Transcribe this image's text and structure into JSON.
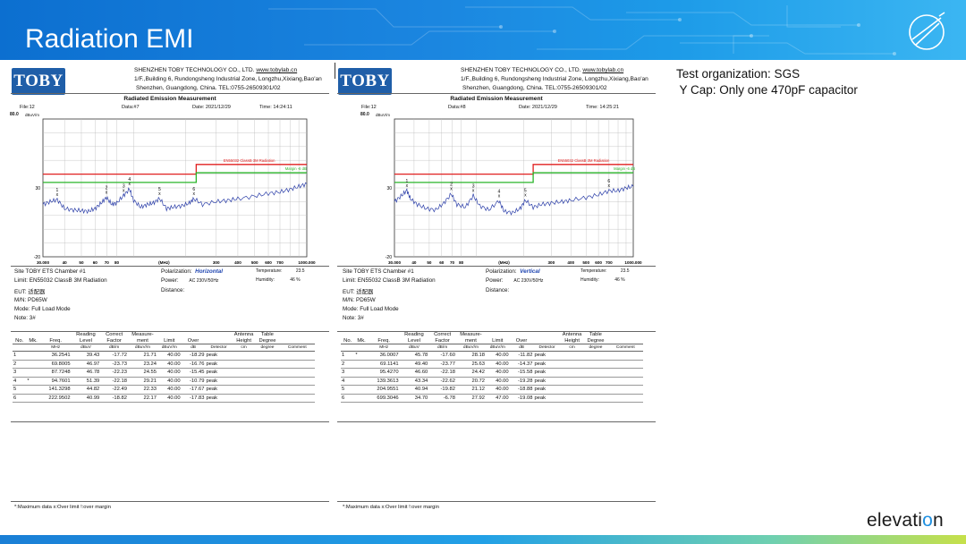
{
  "slide": {
    "title": "Radiation EMI",
    "brand_prefix": "elevati",
    "brand_o": "o",
    "brand_suffix": "n",
    "notes": [
      "Test organization: SGS",
      " Y Cap: Only one 470pF capacitor"
    ]
  },
  "colors": {
    "limit": "#e02020",
    "margin": "#2ab52a",
    "trace": "#2b3ea8",
    "header": "#1b86e0"
  },
  "reports": [
    {
      "company_name": "SHENZHEN TOBY TECHNOLOGY CO., LTD.",
      "website": "www.tobylab.cn",
      "address1": "1/F.,Building 6, Rundongsheng Industrial Zone, Longzhu,Xixiang,Bao'an",
      "address2": "Shenzhen, Guangdong, China.  TEL:0755-26509301/02",
      "logo": "TOBY",
      "heading": "Radiated Emission Measurement",
      "file": "File:12",
      "data": "Data:#7",
      "date": "Date: 2021/12/29",
      "time": "Time: 14:24:11",
      "y_top": "80.0",
      "y_unit": "dBuV/m",
      "site": "Site  TOBY ETS Chamber #1",
      "limit": "Limit: EN55032 ClassB 3M Radiation",
      "eut": "EUT:  适配器",
      "mn": "M/N:  PD65W",
      "mode": "Mode:  Full Load Mode",
      "note": "Note:  3#",
      "polarization_label": "Polarization:",
      "polarization": "Horizontal",
      "power": "Power:",
      "power_value": "AC 230V/50Hz",
      "distance": "Distance:",
      "temperature": "Temperature:",
      "temperature_value": "23.5",
      "humidity": "Humidity:",
      "humidity_value": "46 %",
      "footer": "*:Maximum data     x:Over limit     !:over margin",
      "chart_data": {
        "type": "line",
        "xscale": "log",
        "xlim": [
          30,
          1000
        ],
        "ylim": [
          -20,
          80
        ],
        "xticks": [
          "30.000",
          "40",
          "50",
          "60",
          "70",
          "80",
          "(MHz)",
          "300",
          "400",
          "500",
          "600",
          "700",
          "1000.000"
        ],
        "ytick_labels": [
          "80.0",
          "30",
          "-20"
        ],
        "limit_label": "EN55032 ClassB 3M Radiation",
        "margin_label": "Margin -6 dB",
        "limit_line": [
          {
            "x": 30,
            "y": 40
          },
          {
            "x": 230,
            "y": 40
          },
          {
            "x": 230,
            "y": 47
          },
          {
            "x": 1000,
            "y": 47
          }
        ],
        "margin_line": [
          {
            "x": 30,
            "y": 34
          },
          {
            "x": 230,
            "y": 34
          },
          {
            "x": 230,
            "y": 41
          },
          {
            "x": 1000,
            "y": 41
          }
        ],
        "trace": [
          {
            "x": 30,
            "y": 18
          },
          {
            "x": 33,
            "y": 20
          },
          {
            "x": 36.3,
            "y": 21.5
          },
          {
            "x": 40,
            "y": 15
          },
          {
            "x": 45,
            "y": 14
          },
          {
            "x": 50,
            "y": 13.5
          },
          {
            "x": 55,
            "y": 13
          },
          {
            "x": 60,
            "y": 15
          },
          {
            "x": 65,
            "y": 19
          },
          {
            "x": 69.9,
            "y": 23
          },
          {
            "x": 75,
            "y": 18
          },
          {
            "x": 80,
            "y": 19
          },
          {
            "x": 87.7,
            "y": 24.5
          },
          {
            "x": 94.8,
            "y": 29.2
          },
          {
            "x": 100,
            "y": 21
          },
          {
            "x": 110,
            "y": 16
          },
          {
            "x": 120,
            "y": 18
          },
          {
            "x": 130,
            "y": 19
          },
          {
            "x": 141.3,
            "y": 22.3
          },
          {
            "x": 155,
            "y": 15
          },
          {
            "x": 170,
            "y": 16
          },
          {
            "x": 190,
            "y": 17
          },
          {
            "x": 210,
            "y": 19
          },
          {
            "x": 222.95,
            "y": 22.2
          },
          {
            "x": 250,
            "y": 18
          },
          {
            "x": 300,
            "y": 20
          },
          {
            "x": 350,
            "y": 21
          },
          {
            "x": 400,
            "y": 22
          },
          {
            "x": 500,
            "y": 24
          },
          {
            "x": 600,
            "y": 26
          },
          {
            "x": 700,
            "y": 27
          },
          {
            "x": 800,
            "y": 29
          },
          {
            "x": 900,
            "y": 31
          },
          {
            "x": 1000,
            "y": 33
          }
        ],
        "peaks": [
          {
            "label": "1",
            "x": 36.2541,
            "y": 21.71
          },
          {
            "label": "2",
            "x": 69.8005,
            "y": 23.24
          },
          {
            "label": "3",
            "x": 87.7248,
            "y": 24.55
          },
          {
            "label": "4",
            "x": 94.7601,
            "y": 29.21
          },
          {
            "label": "5",
            "x": 141.3298,
            "y": 22.33
          },
          {
            "label": "6",
            "x": 222.9502,
            "y": 22.17
          }
        ]
      },
      "table": {
        "header1": [
          "No.",
          "Mk.",
          "Freq.",
          "Reading Level",
          "Correct Factor",
          "Measure- ment",
          "Limit",
          "Over",
          "",
          "Antenna Height",
          "Table Degree",
          ""
        ],
        "header2": [
          "",
          "",
          "MHz",
          "dBuV",
          "dB/m",
          "dBuV/m",
          "dBuV/m",
          "dB",
          "Detector",
          "cm",
          "degree",
          "Comment"
        ],
        "rows": [
          [
            "1",
            "",
            "36.2541",
            "39.43",
            "-17.72",
            "21.71",
            "40.00",
            "-18.29",
            "peak",
            "",
            "",
            ""
          ],
          [
            "2",
            "",
            "69.8005",
            "46.97",
            "-23.73",
            "23.24",
            "40.00",
            "-16.76",
            "peak",
            "",
            "",
            ""
          ],
          [
            "3",
            "",
            "87.7248",
            "46.78",
            "-22.23",
            "24.55",
            "40.00",
            "-15.45",
            "peak",
            "",
            "",
            ""
          ],
          [
            "4",
            "*",
            "94.7601",
            "51.39",
            "-22.18",
            "29.21",
            "40.00",
            "-10.79",
            "peak",
            "",
            "",
            ""
          ],
          [
            "5",
            "",
            "141.3298",
            "44.82",
            "-22.49",
            "22.33",
            "40.00",
            "-17.67",
            "peak",
            "",
            "",
            ""
          ],
          [
            "6",
            "",
            "222.9502",
            "40.99",
            "-18.82",
            "22.17",
            "40.00",
            "-17.83",
            "peak",
            "",
            "",
            ""
          ]
        ]
      }
    },
    {
      "company_name": "SHENZHEN TOBY TECHNOLOGY CO., LTD.",
      "website": "www.tobylab.cn",
      "address1": "1/F.,Building 6, Rundongsheng Industrial Zone, Longzhu,Xixiang,Bao'an",
      "address2": "Shenzhen, Guangdong, China.  TEL:0755-26509301/02",
      "logo": "TOBY",
      "heading": "Radiated Emission Measurement",
      "file": "File:12",
      "data": "Data:#8",
      "date": "Date: 2021/12/29",
      "time": "Time: 14:25:21",
      "y_top": "80.0",
      "y_unit": "dBuV/m",
      "site": "Site  TOBY ETS Chamber #1",
      "limit": "Limit: EN55032 ClassB 3M Radiation",
      "eut": "EUT:  适配器",
      "mn": "M/N:  PD65W",
      "mode": "Mode:  Full Load Mode",
      "note": "Note:  3#",
      "polarization_label": "Polarization:",
      "polarization": "Vertical",
      "power": "Power:",
      "power_value": "AC 230V/50Hz",
      "distance": "Distance:",
      "temperature": "Temperature:",
      "temperature_value": "23.5",
      "humidity": "Humidity:",
      "humidity_value": "46 %",
      "footer": "*:Maximum data     x:Over limit     !:over margin",
      "chart_data": {
        "type": "line",
        "xscale": "log",
        "xlim": [
          30,
          1000
        ],
        "ylim": [
          -20,
          80
        ],
        "xticks": [
          "30.000",
          "40",
          "50",
          "60",
          "70",
          "80",
          "(MHz)",
          "300",
          "400",
          "500",
          "600",
          "700",
          "1000.000"
        ],
        "ytick_labels": [
          "80.0",
          "30",
          "-20"
        ],
        "limit_label": "EN55032 ClassB 3M Radiation",
        "margin_label": "Margin -6 dB",
        "limit_line": [
          {
            "x": 30,
            "y": 40
          },
          {
            "x": 230,
            "y": 40
          },
          {
            "x": 230,
            "y": 47
          },
          {
            "x": 1000,
            "y": 47
          }
        ],
        "margin_line": [
          {
            "x": 30,
            "y": 34
          },
          {
            "x": 230,
            "y": 34
          },
          {
            "x": 230,
            "y": 41
          },
          {
            "x": 1000,
            "y": 41
          }
        ],
        "trace": [
          {
            "x": 30,
            "y": 20
          },
          {
            "x": 33,
            "y": 24
          },
          {
            "x": 36,
            "y": 28.2
          },
          {
            "x": 38,
            "y": 22
          },
          {
            "x": 42,
            "y": 18
          },
          {
            "x": 48,
            "y": 15
          },
          {
            "x": 55,
            "y": 14
          },
          {
            "x": 62,
            "y": 19
          },
          {
            "x": 69.1,
            "y": 25.6
          },
          {
            "x": 75,
            "y": 18
          },
          {
            "x": 85,
            "y": 16
          },
          {
            "x": 95.4,
            "y": 24.4
          },
          {
            "x": 105,
            "y": 17
          },
          {
            "x": 120,
            "y": 14
          },
          {
            "x": 139.4,
            "y": 20.7
          },
          {
            "x": 150,
            "y": 13
          },
          {
            "x": 170,
            "y": 12
          },
          {
            "x": 190,
            "y": 15
          },
          {
            "x": 204.96,
            "y": 21.1
          },
          {
            "x": 230,
            "y": 16
          },
          {
            "x": 260,
            "y": 18
          },
          {
            "x": 300,
            "y": 19
          },
          {
            "x": 350,
            "y": 20
          },
          {
            "x": 400,
            "y": 21
          },
          {
            "x": 500,
            "y": 23
          },
          {
            "x": 600,
            "y": 25
          },
          {
            "x": 699.3,
            "y": 27.9
          },
          {
            "x": 800,
            "y": 28
          },
          {
            "x": 900,
            "y": 30
          },
          {
            "x": 1000,
            "y": 31
          }
        ],
        "peaks": [
          {
            "label": "1",
            "x": 36.0007,
            "y": 28.18
          },
          {
            "label": "2",
            "x": 69.1141,
            "y": 25.63
          },
          {
            "label": "3",
            "x": 95.427,
            "y": 24.42
          },
          {
            "label": "4",
            "x": 139.3613,
            "y": 20.72
          },
          {
            "label": "5",
            "x": 204.9551,
            "y": 21.12
          },
          {
            "label": "6",
            "x": 699.3046,
            "y": 27.92
          }
        ]
      },
      "table": {
        "header1": [
          "No.",
          "Mk.",
          "Freq.",
          "Reading Level",
          "Correct Factor",
          "Measure- ment",
          "Limit",
          "Over",
          "",
          "Antenna Height",
          "Table Degree",
          ""
        ],
        "header2": [
          "",
          "",
          "MHz",
          "dBuV",
          "dB/m",
          "dBuV/m",
          "dBuV/m",
          "dB",
          "Detector",
          "cm",
          "degree",
          "Comment"
        ],
        "rows": [
          [
            "1",
            "*",
            "36.0007",
            "45.78",
            "-17.60",
            "28.18",
            "40.00",
            "-11.82",
            "peak",
            "",
            "",
            ""
          ],
          [
            "2",
            "",
            "69.1141",
            "49.40",
            "-23.77",
            "25.63",
            "40.00",
            "-14.37",
            "peak",
            "",
            "",
            ""
          ],
          [
            "3",
            "",
            "95.4270",
            "46.60",
            "-22.18",
            "24.42",
            "40.00",
            "-15.58",
            "peak",
            "",
            "",
            ""
          ],
          [
            "4",
            "",
            "139.3613",
            "43.34",
            "-22.62",
            "20.72",
            "40.00",
            "-19.28",
            "peak",
            "",
            "",
            ""
          ],
          [
            "5",
            "",
            "204.9551",
            "40.94",
            "-19.82",
            "21.12",
            "40.00",
            "-18.88",
            "peak",
            "",
            "",
            ""
          ],
          [
            "6",
            "",
            "699.3046",
            "34.70",
            "-6.78",
            "27.92",
            "47.00",
            "-19.08",
            "peak",
            "",
            "",
            ""
          ]
        ]
      }
    }
  ]
}
